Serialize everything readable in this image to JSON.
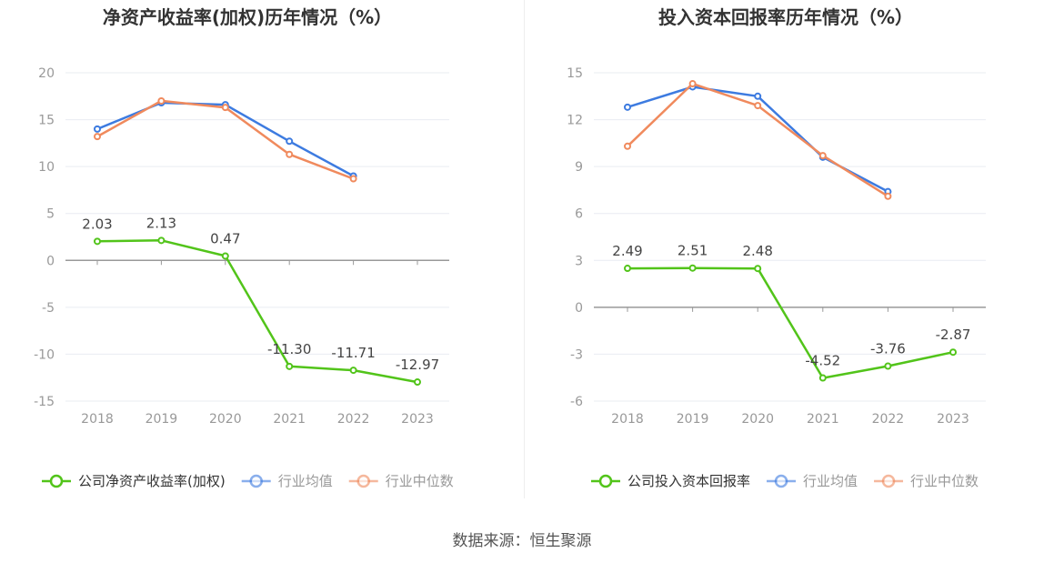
{
  "source": "数据来源：恒生聚源",
  "colors": {
    "company": "#52c41a",
    "industry_avg": "#3d7be0",
    "industry_median": "#f08a5d",
    "grid": "#e9ecf2",
    "axis": "#999999"
  },
  "chart_data": [
    {
      "type": "line",
      "title": "净资产收益率(加权)历年情况（%）",
      "categories": [
        "2018",
        "2019",
        "2020",
        "2021",
        "2022",
        "2023"
      ],
      "ylim": [
        -15,
        20
      ],
      "yticks": [
        20,
        15,
        10,
        5,
        0,
        -5,
        -10,
        -15
      ],
      "series": [
        {
          "name": "公司净资产收益率(加权)",
          "color_key": "company",
          "values": [
            2.03,
            2.13,
            0.47,
            -11.3,
            -11.71,
            -12.97
          ],
          "labels": [
            "2.03",
            "2.13",
            "0.47",
            "-11.30",
            "-11.71",
            "-12.97"
          ]
        },
        {
          "name": "行业均值",
          "color_key": "industry_avg",
          "values": [
            14.0,
            16.8,
            16.6,
            12.7,
            9.0,
            null
          ]
        },
        {
          "name": "行业中位数",
          "color_key": "industry_median",
          "values": [
            13.2,
            17.0,
            16.3,
            11.3,
            8.7,
            null
          ]
        }
      ]
    },
    {
      "type": "line",
      "title": "投入资本回报率历年情况（%）",
      "categories": [
        "2018",
        "2019",
        "2020",
        "2021",
        "2022",
        "2023"
      ],
      "ylim": [
        -6,
        15
      ],
      "yticks": [
        15,
        12,
        9,
        6,
        3,
        0,
        -3,
        -6
      ],
      "series": [
        {
          "name": "公司投入资本回报率",
          "color_key": "company",
          "values": [
            2.49,
            2.51,
            2.48,
            -4.52,
            -3.76,
            -2.87
          ],
          "labels": [
            "2.49",
            "2.51",
            "2.48",
            "-4.52",
            "-3.76",
            "-2.87"
          ]
        },
        {
          "name": "行业均值",
          "color_key": "industry_avg",
          "values": [
            12.8,
            14.1,
            13.5,
            9.6,
            7.4,
            null
          ]
        },
        {
          "name": "行业中位数",
          "color_key": "industry_median",
          "values": [
            10.3,
            14.3,
            12.9,
            9.7,
            7.1,
            null
          ]
        }
      ]
    }
  ]
}
